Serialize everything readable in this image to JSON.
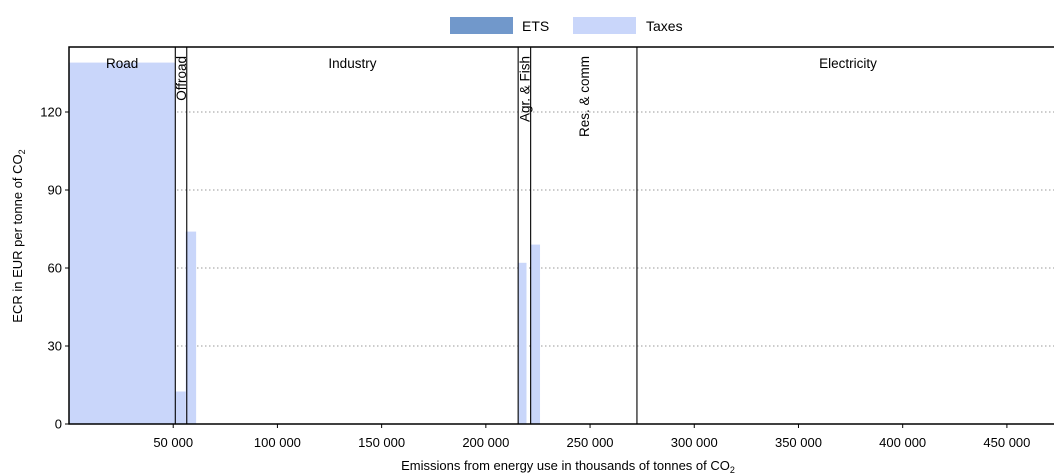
{
  "chart_data": {
    "type": "bar",
    "legend": {
      "position": "top-center",
      "items": [
        {
          "name": "ETS",
          "color": "#7198cb"
        },
        {
          "name": "Taxes",
          "color": "#c9d6fa"
        }
      ]
    },
    "xlabel": "Emissions from energy use in thousands of tonnes of CO",
    "xlabel_sub": "2",
    "ylabel": "ECR in EUR per tonne of CO",
    "ylabel_sub": "2",
    "xlim": [
      0,
      475000
    ],
    "ylim": [
      0,
      145
    ],
    "x_ticks": [
      50000,
      100000,
      150000,
      200000,
      250000,
      300000,
      350000,
      400000,
      450000
    ],
    "x_tick_labels": [
      "50 000",
      "100 000",
      "150 000",
      "200 000",
      "250 000",
      "300 000",
      "350 000",
      "400 000",
      "450 000"
    ],
    "y_ticks": [
      0,
      30,
      60,
      90,
      120
    ],
    "y_tick_labels": [
      "0",
      "30",
      "60",
      "90",
      "120"
    ],
    "grid": {
      "horizontal": true,
      "style": "dotted"
    },
    "sector_boundaries": [
      51000,
      56500,
      215500,
      221500,
      272500
    ],
    "sectors": [
      {
        "name": "Road",
        "x_start": 0,
        "x_end": 51000,
        "label_orientation": "horizontal"
      },
      {
        "name": "Offroad",
        "x_start": 51000,
        "x_end": 56500,
        "label_orientation": "vertical"
      },
      {
        "name": "Industry",
        "x_start": 56500,
        "x_end": 215500,
        "label_orientation": "horizontal"
      },
      {
        "name": "Agr. & Fish",
        "x_start": 215500,
        "x_end": 221500,
        "label_orientation": "vertical"
      },
      {
        "name": "Res. & comm",
        "x_start": 221500,
        "x_end": 272500,
        "label_orientation": "vertical"
      },
      {
        "name": "Electricity",
        "x_start": 272500,
        "x_end": 475000,
        "label_orientation": "horizontal"
      }
    ],
    "bars": [
      {
        "sector": "Road",
        "x_start": 0,
        "x_end": 51000,
        "ets": 0,
        "taxes": 139
      },
      {
        "sector": "Offroad",
        "x_start": 51000,
        "x_end": 56000,
        "ets": 0,
        "taxes": 12.5
      },
      {
        "sector": "Offroad",
        "x_start": 56000,
        "x_end": 61000,
        "ets": 0,
        "taxes": 74
      },
      {
        "sector": "Agr. & Fish",
        "x_start": 215500,
        "x_end": 219500,
        "ets": 0,
        "taxes": 62
      },
      {
        "sector": "Agr. & Fish",
        "x_start": 221500,
        "x_end": 226000,
        "ets": 0,
        "taxes": 69
      }
    ]
  }
}
